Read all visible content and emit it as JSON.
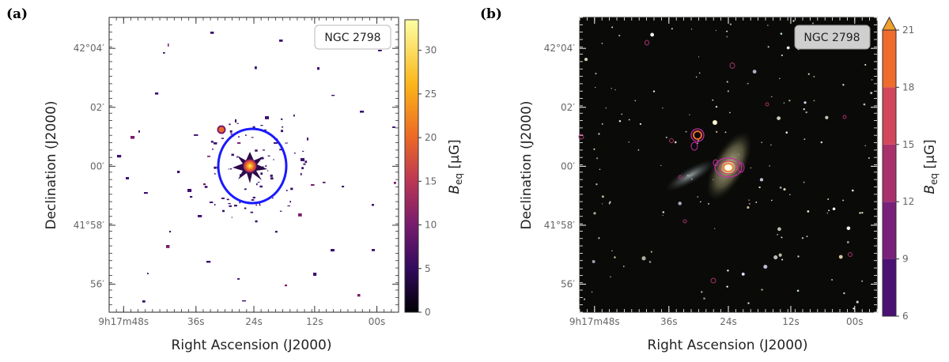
{
  "panels": [
    {
      "label": "(a)",
      "galaxy_label": "NGC 2798",
      "xlabel": "Right Ascension (J2000)",
      "ylabel": "Declination (J2000)",
      "x_ticks": [
        "9h17m48s",
        "36s",
        "24s",
        "12s",
        "00s"
      ],
      "y_ticks": [
        "42°04′",
        "02′",
        "00′",
        "41°58′",
        "56′"
      ],
      "colorbar": {
        "label": "B_eq [μG]",
        "label_main": "B",
        "label_sub": "eq",
        "label_unit": " [μG]",
        "ticks": [
          "0",
          "5",
          "10",
          "15",
          "20",
          "25",
          "30"
        ],
        "range": [
          0,
          33.5
        ],
        "colormap": "inferno",
        "colors": [
          "#000004",
          "#320a5e",
          "#781c6d",
          "#bc3754",
          "#ed6925",
          "#fbb61a",
          "#fcffa4"
        ]
      },
      "ellipse_color": "#1a1aff"
    },
    {
      "label": "(b)",
      "galaxy_label": "NGC 2798",
      "xlabel": "Right Ascension (J2000)",
      "ylabel": "Declination (J2000)",
      "x_ticks": [
        "9h17m48s",
        "36s",
        "24s",
        "12s",
        "00s"
      ],
      "y_ticks": [
        "42°04′",
        "02′",
        "00′",
        "41°58′",
        "56′"
      ],
      "colorbar": {
        "label": "B_eq [μG]",
        "label_main": "B",
        "label_sub": "eq",
        "label_unit": " [μG]",
        "ticks": [
          "6",
          "9",
          "12",
          "15",
          "18",
          "21"
        ],
        "range": [
          6,
          21
        ],
        "extend": "max",
        "levels": [
          {
            "from": 6,
            "to": 9,
            "color": "#4a1272"
          },
          {
            "from": 9,
            "to": 12,
            "color": "#79217a"
          },
          {
            "from": 12,
            "to": 15,
            "color": "#a8316b"
          },
          {
            "from": 15,
            "to": 18,
            "color": "#d2475b"
          },
          {
            "from": 18,
            "to": 21,
            "color": "#ef6b2e"
          },
          {
            "from": 21,
            "to": 24,
            "color": "#f2a02c"
          }
        ]
      },
      "contour_color": "#c12fa0"
    }
  ]
}
